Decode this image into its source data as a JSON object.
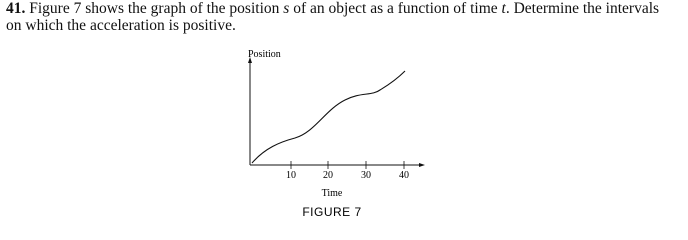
{
  "problem": {
    "number": "41.",
    "text": [
      "Figure 7 shows the graph of the position ",
      "s",
      " of an object as a function of time ",
      "t",
      ". Determine the intervals on which the acceleration is positive."
    ]
  },
  "figure": {
    "y_label": "Position",
    "x_label": "Time",
    "x_ticks": [
      "10",
      "20",
      "30",
      "40"
    ],
    "caption": "FIGURE 7"
  }
}
